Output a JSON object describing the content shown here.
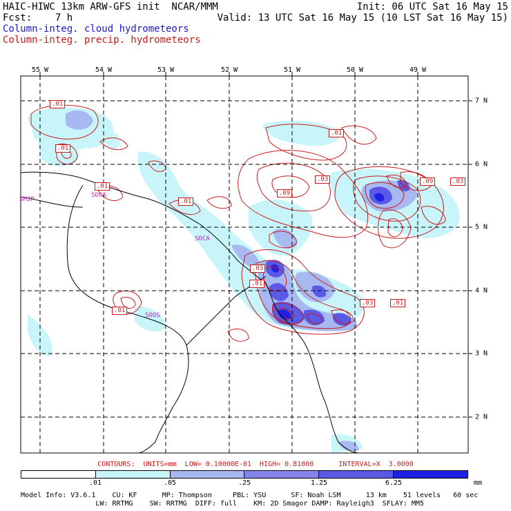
{
  "header": {
    "line1_left": "HAIC-HIWC 13km ARW-GFS init  NCAR/MMM",
    "line1_right": "Init: 06 UTC Sat 16 May 15",
    "line2_left": "Fcst:    7 h",
    "line2_right": "Valid: 13 UTC Sat 16 May 15 (10 LST Sat 16 May 15)",
    "line3": "Column-integ. cloud hydrometeors",
    "line4": "Column-integ. precip. hydrometeors"
  },
  "axes": {
    "lon_labels": [
      "55 W",
      "54 W",
      "53 W",
      "52 W",
      "51 W",
      "50 W",
      "49 W"
    ],
    "lat_labels": [
      "7 N",
      "6 N",
      "5 N",
      "4 N",
      "3 N",
      "2 N"
    ]
  },
  "stations": [
    "SMJP",
    "SOCA",
    "SOCA",
    "SOOS"
  ],
  "contour_labels": [
    ".01",
    ".01",
    ".01",
    ".01",
    ".09",
    ".03",
    ".09",
    ".03",
    ".01",
    ".03",
    ".01",
    ".03",
    ".01",
    ".01"
  ],
  "contour_info": "CONTOURS:  UNITS=mm  LOW= 0.10000E-01  HIGH= 0.81000      INTERVAL=X  3.0000",
  "colorbar": {
    "ticks": [
      ".01",
      ".05",
      ".25",
      "1.25",
      "6.25"
    ],
    "unit": "mm",
    "colors": [
      "#ffffff",
      "#c8f5fa",
      "#a8b8f0",
      "#8484ea",
      "#5a5ae6",
      "#2020e4"
    ]
  },
  "footer": {
    "line1": "Model Info: V3.6.1    CU: KF      MP: Thompson     PBL: YSU      SF: Noah LSM      13 km    51 levels   60 sec",
    "line2": "                  LW: RRTMG    SW: RRTMG  DIFF: full    KM: 2D Smagor DAMP: Rayleigh3  SFLAY: MM5"
  }
}
